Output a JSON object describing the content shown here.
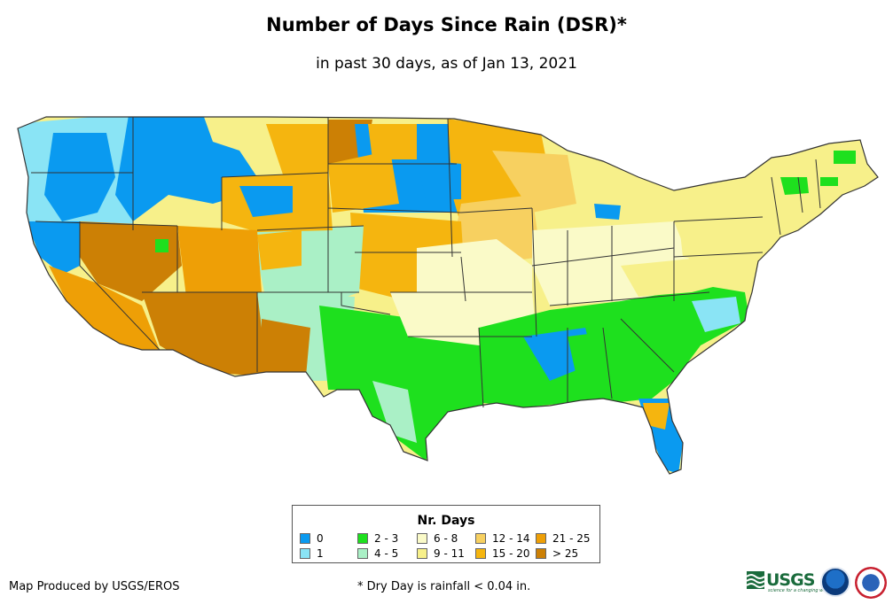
{
  "header": {
    "title": "Number of Days Since Rain (DSR)*",
    "subtitle": "in past 30 days, as of Jan 13, 2021"
  },
  "legend": {
    "title": "Nr. Days",
    "items": [
      {
        "label": "0",
        "color": "#0a9af0"
      },
      {
        "label": "1",
        "color": "#8ae4f5"
      },
      {
        "label": "2 - 3",
        "color": "#1ee01e"
      },
      {
        "label": "4 - 5",
        "color": "#aaf0c6"
      },
      {
        "label": "6 - 8",
        "color": "#fafac8"
      },
      {
        "label": "9 - 11",
        "color": "#f7f08a"
      },
      {
        "label": "12 - 14",
        "color": "#f7d060"
      },
      {
        "label": "15 - 20",
        "color": "#f5b50f"
      },
      {
        "label": "21 - 25",
        "color": "#ee9f06"
      },
      {
        "label": "> 25",
        "color": "#cc8005"
      }
    ]
  },
  "footer": {
    "credit": "Map Produced by USGS/EROS",
    "note": "* Dry Day is rainfall < 0.04 in."
  },
  "logos": {
    "usgs_text": "USGS",
    "usgs_tagline": "science for a changing world"
  },
  "map": {
    "region": "Contiguous United States",
    "state_border_color": "#333333"
  }
}
